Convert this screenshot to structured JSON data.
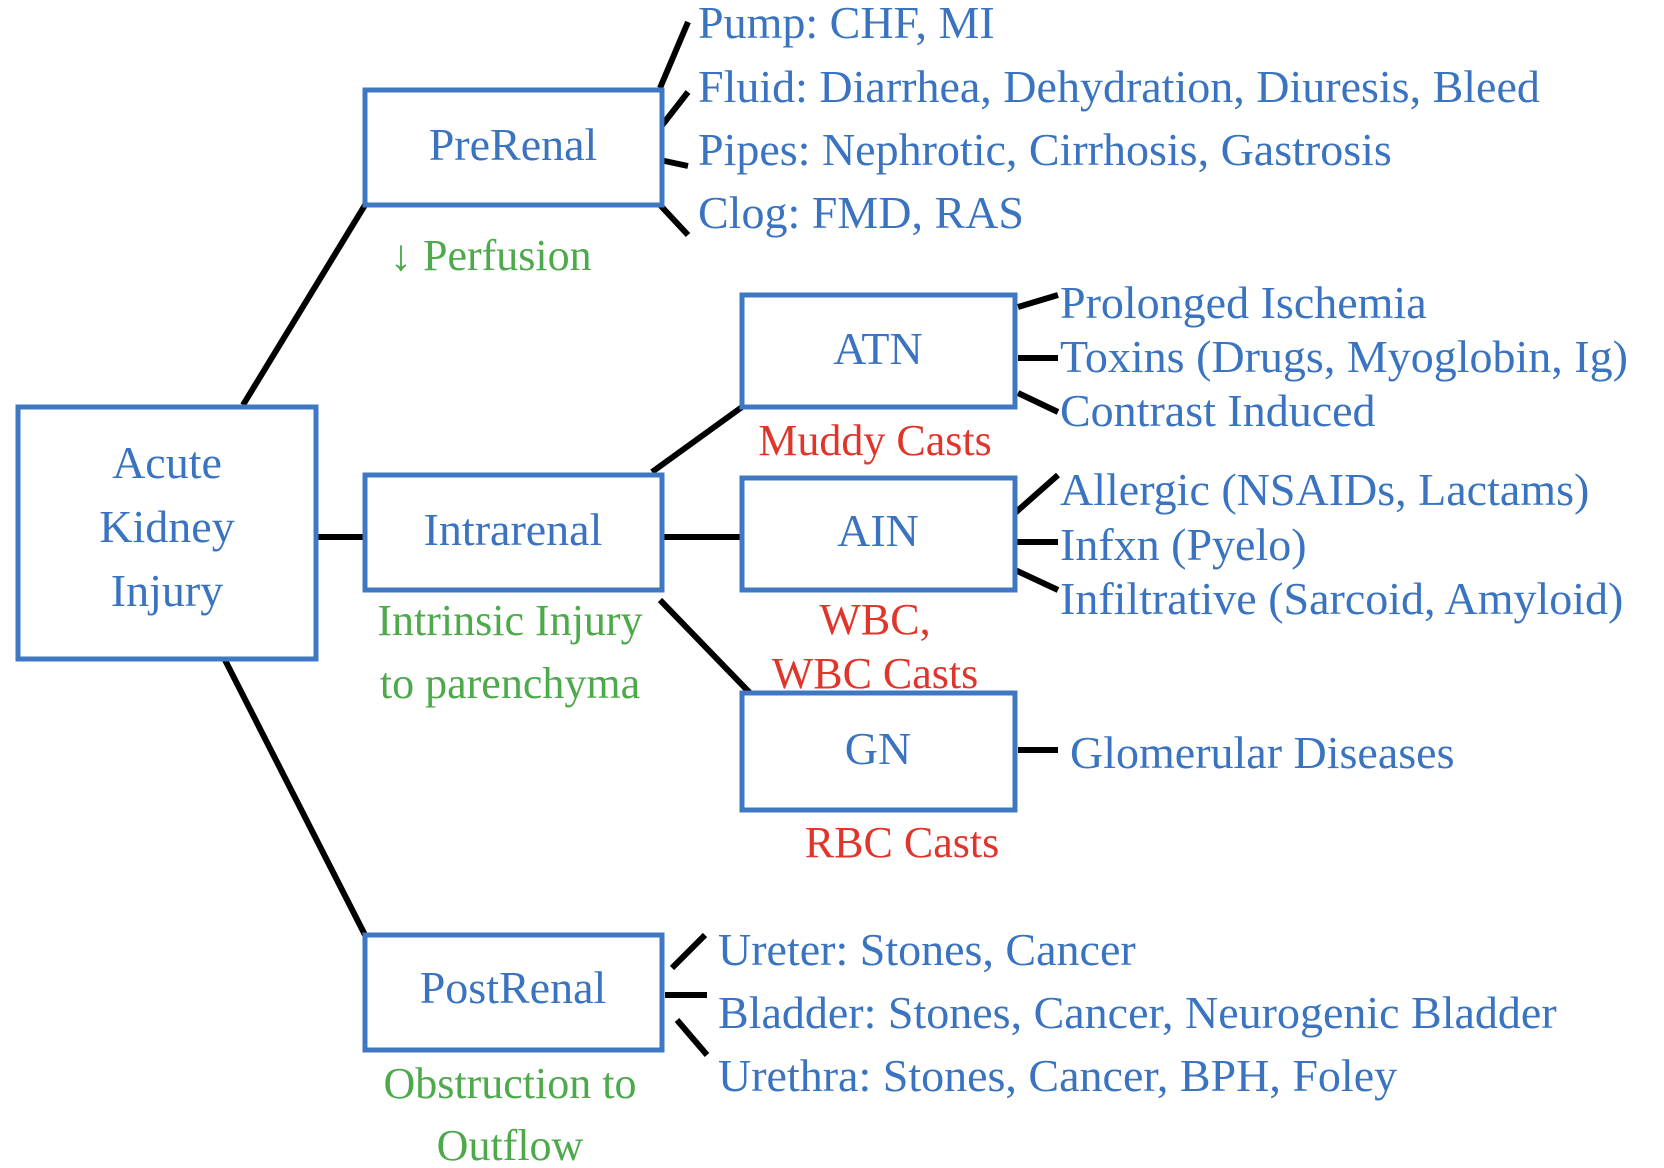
{
  "root": {
    "lines": [
      "Acute",
      "Kidney",
      "Injury"
    ]
  },
  "prerenal": {
    "label": "PreRenal",
    "note": "↓ Perfusion",
    "causes": [
      "Pump: CHF, MI",
      "Fluid: Diarrhea, Dehydration, Diuresis, Bleed",
      "Pipes: Nephrotic, Cirrhosis, Gastrosis",
      "Clog: FMD, RAS"
    ]
  },
  "intrarenal": {
    "label": "Intrarenal",
    "note_lines": [
      "Intrinsic Injury",
      "to parenchyma"
    ],
    "atn": {
      "label": "ATN",
      "finding": "Muddy Casts",
      "causes": [
        "Prolonged Ischemia",
        "Toxins (Drugs, Myoglobin, Ig)",
        "Contrast Induced"
      ]
    },
    "ain": {
      "label": "AIN",
      "finding_lines": [
        "WBC,",
        "WBC Casts"
      ],
      "causes": [
        "Allergic (NSAIDs, Lactams)",
        "Infxn (Pyelo)",
        "Infiltrative (Sarcoid, Amyloid)"
      ]
    },
    "gn": {
      "label": "GN",
      "finding": "RBC Casts",
      "causes": [
        "Glomerular Diseases"
      ]
    }
  },
  "postrenal": {
    "label": "PostRenal",
    "note_lines": [
      "Obstruction to",
      "Outflow"
    ],
    "causes": [
      "Ureter: Stones, Cancer",
      "Bladder: Stones, Cancer, Neurogenic Bladder",
      "Urethra: Stones, Cancer, BPH, Foley"
    ]
  },
  "colors": {
    "box_border": "#3f78c2",
    "text_blue": "#3a74c0",
    "note_green": "#4daa4a",
    "finding_red": "#e0352b",
    "connector": "#000000"
  }
}
